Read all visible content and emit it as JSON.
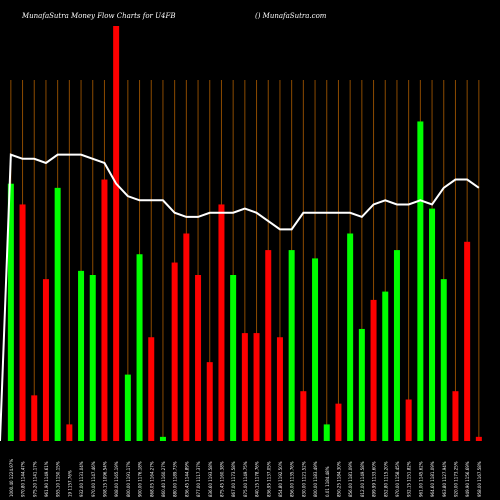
{
  "header": {
    "left_title": "MunafaSutra  Money Flow  Charts for U4FB",
    "right_title": "() MunafaSutra.com"
  },
  "colors": {
    "background": "#000000",
    "up": "#00ff00",
    "down": "#ff0000",
    "gridline": "#8b4a00",
    "price_line": "#ffffff",
    "label": "#ffffff"
  },
  "chart_data": {
    "type": "bar",
    "ylim": [
      0,
      100
    ],
    "categories": [
      "1000.40 1224.97%",
      "970.80 1144.47%",
      "975.20 1141.17%",
      "961.90 1149.61%",
      "955.10 1150.15%",
      "19  1157.76%",
      "932.00 1131.04%",
      "970.00 1147.46%",
      "908.15 1096.54%",
      "908.00 1165.19%",
      "800.00 1191.17%",
      "900.00 1176.18%",
      "868.05 1164.27%",
      "860.40 1160.27%",
      "880.00 1189.73%",
      "836.45 1144.89%",
      "877.00 1117.37%",
      "836.60 1193.58%",
      "875.45 1160.38%",
      "867.00 1173.58%",
      "875.00 1149.75%",
      "840.15 1178.76%",
      "836.95 1137.05%",
      "854.80 1192.50%",
      "856.00 1135.76%",
      "830.00 1121.52%",
      "800.00 1183.49%",
      "0.01 1184.48%",
      "850.25 1184.30%",
      "856.00 1181.09%",
      "812.00 1149.58%",
      "899.99 1133.60%",
      "852.80 1115.20%",
      "970.00 1158.45%",
      "932.15 1151.82%",
      "961.00 1145.62%",
      "964.60 1181.09%",
      "963.80 1127.94%",
      "920.00 1173.25%",
      "949.90 1156.69%",
      "958.00 1167.58%"
    ],
    "values": [
      62,
      57,
      11,
      39,
      61,
      4,
      41,
      40,
      63,
      100,
      16,
      45,
      25,
      1,
      43,
      50,
      40,
      19,
      57,
      40,
      26,
      26,
      46,
      25,
      46,
      12,
      44,
      4,
      9,
      50,
      27,
      34,
      36,
      46,
      10,
      77,
      56,
      39,
      12,
      48,
      1
    ],
    "directions": [
      "up",
      "down",
      "down",
      "down",
      "up",
      "down",
      "up",
      "up",
      "down",
      "down",
      "up",
      "up",
      "down",
      "up",
      "down",
      "down",
      "down",
      "down",
      "down",
      "up",
      "down",
      "down",
      "down",
      "down",
      "up",
      "down",
      "up",
      "up",
      "down",
      "up",
      "up",
      "down",
      "up",
      "up",
      "down",
      "up",
      "up",
      "up",
      "down",
      "down",
      "down"
    ],
    "price_line": [
      69,
      68,
      68,
      67,
      69,
      69,
      69,
      68,
      67,
      62,
      59,
      58,
      58,
      58,
      55,
      54,
      54,
      55,
      55,
      55,
      56,
      55,
      53,
      51,
      51,
      55,
      55,
      55,
      55,
      55,
      54,
      57,
      58,
      57,
      57,
      58,
      57,
      61,
      63,
      63,
      61
    ]
  }
}
